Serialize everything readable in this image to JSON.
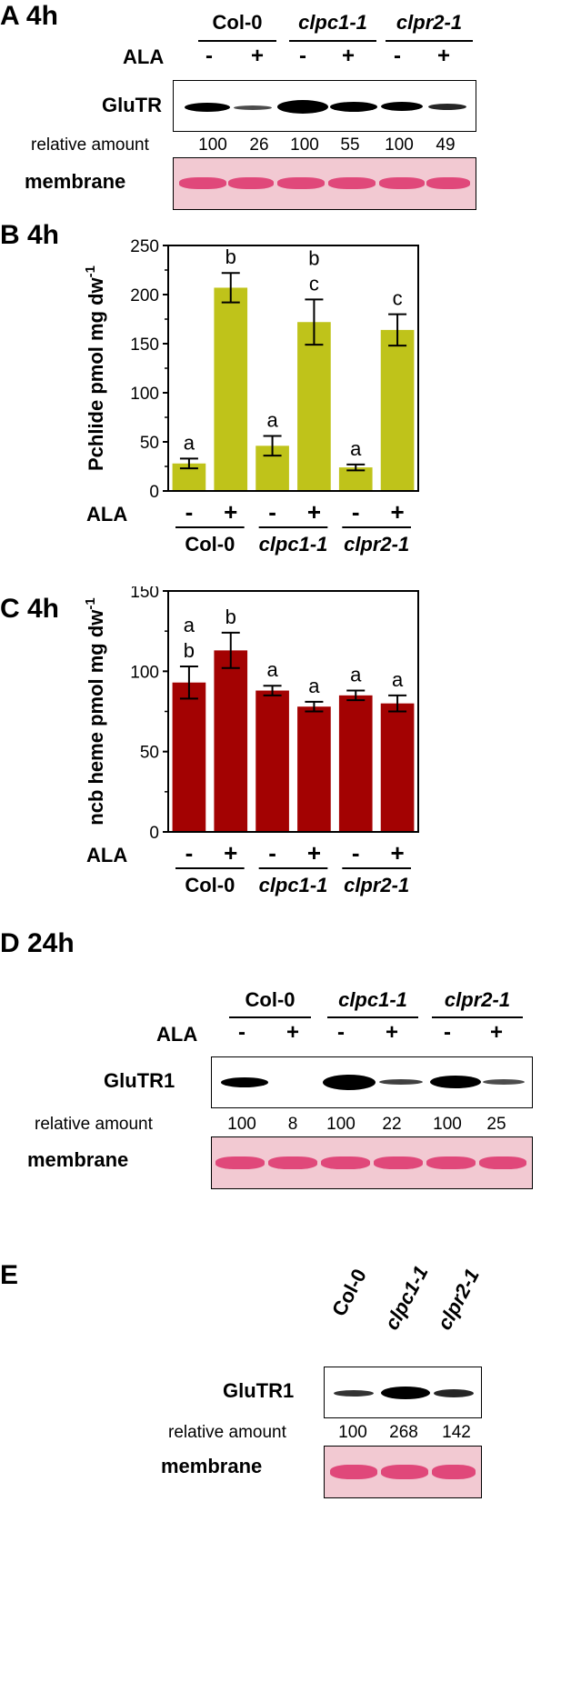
{
  "panel_a": {
    "label": "A 4h",
    "groups": [
      "Col-0",
      "clpc1-1",
      "clpr2-1"
    ],
    "treatment_label": "ALA",
    "signs": [
      "-",
      "+",
      "-",
      "+",
      "-",
      "+"
    ],
    "blot_label": "GluTR",
    "relative_amount_label": "relative amount",
    "relative_amounts": [
      "100",
      "26",
      "100",
      "55",
      "100",
      "49"
    ],
    "membrane_label": "membrane"
  },
  "panel_d": {
    "label": "D 24h",
    "groups": [
      "Col-0",
      "clpc1-1",
      "clpr2-1"
    ],
    "treatment_label": "ALA",
    "signs": [
      "-",
      "+",
      "-",
      "+",
      "-",
      "+"
    ],
    "blot_label": "GluTR1",
    "relative_amount_label": "relative amount",
    "relative_amounts": [
      "100",
      "8",
      "100",
      "22",
      "100",
      "25"
    ],
    "membrane_label": "membrane"
  },
  "panel_e": {
    "label": "E",
    "groups": [
      "Col-0",
      "clpc1-1",
      "clpr2-1"
    ],
    "blot_label": "GluTR1",
    "relative_amount_label": "relative amount",
    "relative_amounts": [
      "100",
      "268",
      "142"
    ],
    "membrane_label": "membrane"
  },
  "chart_data": [
    {
      "type": "bar",
      "panel_label": "B 4h",
      "ylabel": "Pchlide pmol mg dw",
      "ylabel_sup": "-1",
      "ylim": [
        0,
        250
      ],
      "yticks": [
        0,
        50,
        100,
        150,
        200,
        250
      ],
      "categories": [
        "-",
        "+",
        "-",
        "+",
        "-",
        "+"
      ],
      "treatment_label": "ALA",
      "groups": [
        "Col-0",
        "clpc1-1",
        "clpr2-1"
      ],
      "values": [
        28,
        207,
        46,
        172,
        24,
        164
      ],
      "errors": [
        5,
        15,
        10,
        23,
        3,
        16
      ],
      "significance": [
        [
          "a"
        ],
        [
          "b"
        ],
        [
          "a"
        ],
        [
          "b",
          "c"
        ],
        [
          "a"
        ],
        [
          "c"
        ]
      ],
      "color": "#bfc31a"
    },
    {
      "type": "bar",
      "panel_label": "C 4h",
      "ylabel": "ncb heme pmol mg dw",
      "ylabel_sup": "-1",
      "ylim": [
        0,
        150
      ],
      "yticks": [
        0,
        50,
        100,
        150
      ],
      "categories": [
        "-",
        "+",
        "-",
        "+",
        "-",
        "+"
      ],
      "treatment_label": "ALA",
      "groups": [
        "Col-0",
        "clpc1-1",
        "clpr2-1"
      ],
      "values": [
        93,
        113,
        88,
        78,
        85,
        80
      ],
      "errors": [
        10,
        11,
        3,
        3,
        3,
        5
      ],
      "significance": [
        [
          "a",
          "b"
        ],
        [
          "b"
        ],
        [
          "a"
        ],
        [
          "a"
        ],
        [
          "a"
        ],
        [
          "a"
        ]
      ],
      "color": "#a30202"
    }
  ]
}
